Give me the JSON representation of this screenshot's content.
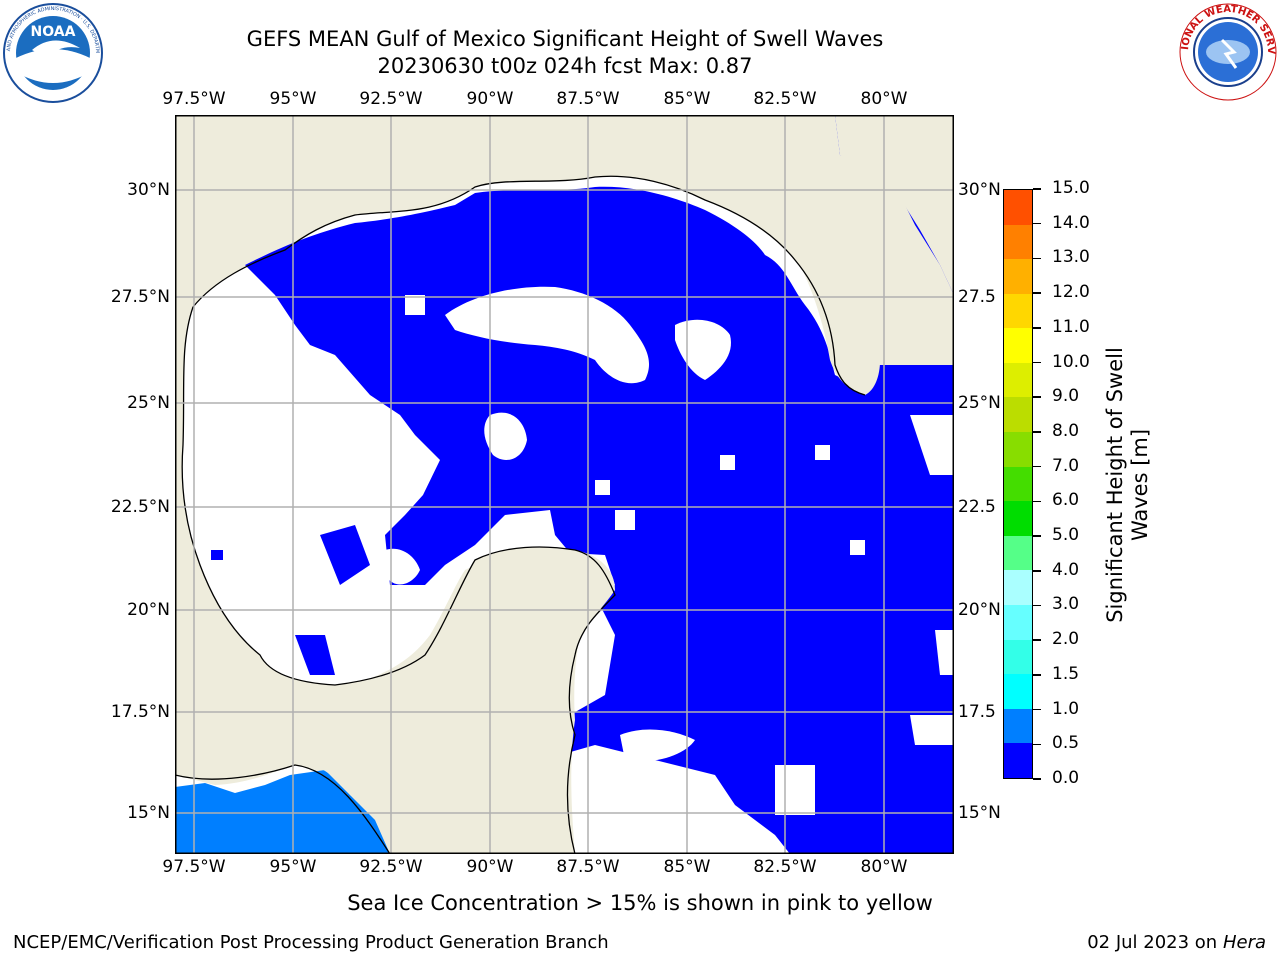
{
  "header": {
    "title_line1": "GEFS MEAN Gulf of Mexico Significant Height of Swell Waves",
    "title_line2": "20230630 t00z 024h fcst   Max: 0.87"
  },
  "logos": {
    "left": {
      "name": "NOAA",
      "ring_text": "NATIONAL OCEANIC AND ATMOSPHERIC ADMINISTRATION · U.S. DEPARTMENT OF COMMERCE"
    },
    "right": {
      "name": "NATIONAL WEATHER SERVICE"
    }
  },
  "map": {
    "lon_labels": [
      "97.5°W",
      "95°W",
      "92.5°W",
      "90°W",
      "87.5°W",
      "85°W",
      "82.5°W",
      "80°W"
    ],
    "lat_labels": [
      "30°N",
      "27.5°N",
      "25°N",
      "22.5°N",
      "20°N",
      "17.5°N",
      "15°N"
    ],
    "lat_labels_right": [
      "30°N",
      "27.5",
      "25°N",
      "22.5",
      "20°N",
      "17.5",
      "15°N"
    ],
    "lon_range": [
      -98,
      -78.5
    ],
    "lat_range": [
      14,
      31.5
    ],
    "colors": {
      "land": "#eeecdc",
      "ocean_no_data": "#ffffff",
      "swell_0_05": "#0000ff",
      "swell_05_10": "#007fff",
      "coast": "#000000",
      "grid": "#b0b0b0"
    }
  },
  "colorbar": {
    "label_line1": "Significant Height of Swell",
    "label_line2": "Waves [m]",
    "ticks": [
      "0.0",
      "0.5",
      "1.0",
      "1.5",
      "2.0",
      "3.0",
      "4.0",
      "5.0",
      "6.0",
      "7.0",
      "8.0",
      "9.0",
      "10.0",
      "11.0",
      "12.0",
      "13.0",
      "14.0",
      "15.0"
    ],
    "colors": [
      "#0000ff",
      "#007fff",
      "#00ffff",
      "#33ffe8",
      "#66ffff",
      "#aaffff",
      "#55ff88",
      "#00dd00",
      "#44dd00",
      "#88dd00",
      "#bbdd00",
      "#ddee00",
      "#ffff00",
      "#ffd700",
      "#ffb000",
      "#ff8000",
      "#ff5000",
      "#ff2800",
      "#ff0000"
    ]
  },
  "footer": {
    "note": "Sea Ice Concentration > 15% is shown in pink to yellow",
    "left_credit": "NCEP/EMC/Verification Post Processing Product Generation Branch",
    "right_credit_prefix": "02 Jul 2023 on ",
    "right_credit_machine": "Hera"
  }
}
